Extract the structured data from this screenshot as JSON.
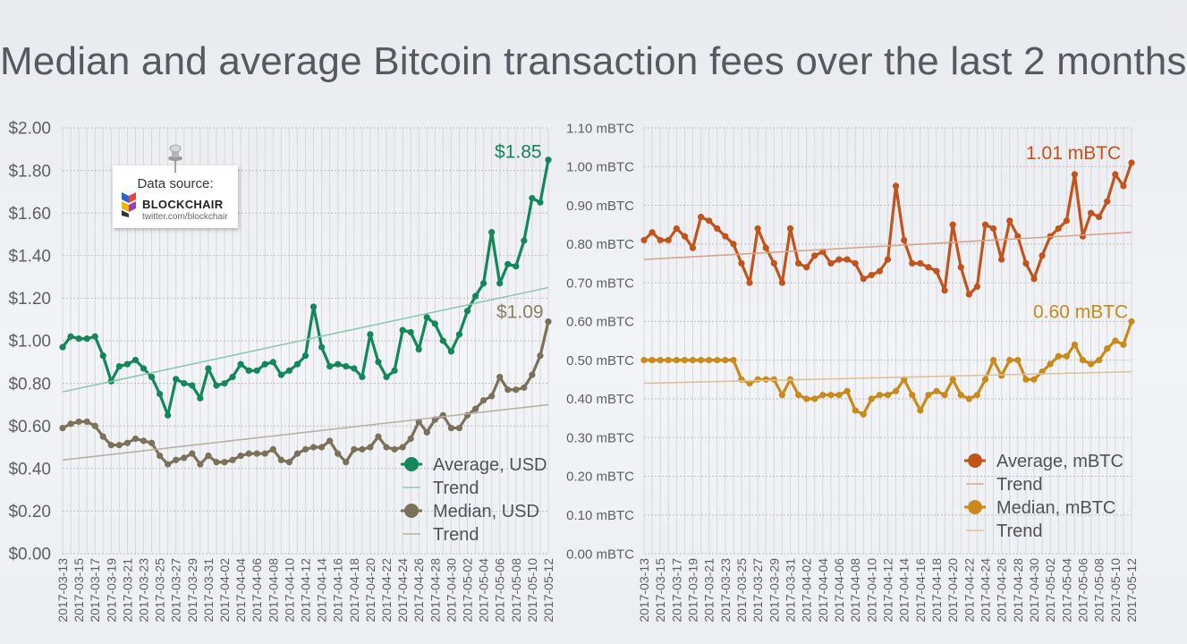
{
  "slide_title": "Median and average Bitcoin transaction fees over the last 2 months",
  "note": {
    "title": "Data source:",
    "brand": "BLOCKCHAIR",
    "handle": "twitter.com/blockchair"
  },
  "chart_data": [
    {
      "type": "line",
      "title": "",
      "xlabel": "",
      "ylabel": "",
      "ylim": [
        0,
        2
      ],
      "y_ticks": [
        "$0.00",
        "$0.20",
        "$0.40",
        "$0.60",
        "$0.80",
        "$1.00",
        "$1.20",
        "$1.40",
        "$1.60",
        "$1.80",
        "$2.00"
      ],
      "grid": true,
      "legend_position": "bottom-right",
      "x_tick_labels": [
        "2017-03-13",
        "2017-03-15",
        "2017-03-17",
        "2017-03-19",
        "2017-03-21",
        "2017-03-23",
        "2017-03-25",
        "2017-03-27",
        "2017-03-29",
        "2017-03-31",
        "2017-04-02",
        "2017-04-04",
        "2017-04-06",
        "2017-04-08",
        "2017-04-10",
        "2017-04-12",
        "2017-04-14",
        "2017-04-16",
        "2017-04-18",
        "2017-04-20",
        "2017-04-22",
        "2017-04-24",
        "2017-04-26",
        "2017-04-28",
        "2017-04-30",
        "2017-05-02",
        "2017-05-04",
        "2017-05-06",
        "2017-05-08",
        "2017-05-10",
        "2017-05-12"
      ],
      "series": [
        {
          "name": "Average, USD",
          "color": "#12875a",
          "kind": "data",
          "values": [
            0.97,
            1.02,
            1.01,
            1.01,
            1.02,
            0.93,
            0.81,
            0.88,
            0.89,
            0.91,
            0.87,
            0.83,
            0.75,
            0.65,
            0.82,
            0.8,
            0.79,
            0.73,
            0.87,
            0.79,
            0.8,
            0.83,
            0.89,
            0.86,
            0.86,
            0.89,
            0.9,
            0.84,
            0.86,
            0.89,
            0.93,
            1.16,
            0.97,
            0.88,
            0.89,
            0.88,
            0.87,
            0.83,
            1.03,
            0.9,
            0.83,
            0.86,
            1.05,
            1.04,
            0.96,
            1.11,
            1.08,
            1.0,
            0.95,
            1.03,
            1.14,
            1.21,
            1.27,
            1.51,
            1.27,
            1.36,
            1.35,
            1.47,
            1.67,
            1.65,
            1.85
          ]
        },
        {
          "name": "Trend",
          "color": "#8cc9ad",
          "kind": "trend",
          "values": [
            0.76,
            1.25
          ]
        },
        {
          "name": "Median, USD",
          "color": "#7b7158",
          "kind": "data",
          "values": [
            0.59,
            0.61,
            0.62,
            0.62,
            0.6,
            0.55,
            0.51,
            0.51,
            0.52,
            0.54,
            0.53,
            0.52,
            0.46,
            0.42,
            0.44,
            0.45,
            0.47,
            0.42,
            0.46,
            0.43,
            0.43,
            0.44,
            0.46,
            0.47,
            0.47,
            0.47,
            0.49,
            0.44,
            0.43,
            0.47,
            0.49,
            0.5,
            0.5,
            0.53,
            0.47,
            0.43,
            0.49,
            0.49,
            0.5,
            0.55,
            0.5,
            0.49,
            0.5,
            0.54,
            0.62,
            0.57,
            0.63,
            0.65,
            0.59,
            0.59,
            0.65,
            0.68,
            0.72,
            0.74,
            0.83,
            0.77,
            0.77,
            0.78,
            0.84,
            0.93,
            1.09
          ]
        },
        {
          "name": "Trend",
          "color": "#b9b2a2",
          "kind": "trend",
          "values": [
            0.44,
            0.7
          ]
        }
      ],
      "annotations": [
        {
          "text": "$1.85",
          "color": "#12875a"
        },
        {
          "text": "$1.09",
          "color": "#8a7f63"
        }
      ]
    },
    {
      "type": "line",
      "title": "",
      "xlabel": "",
      "ylabel": "",
      "ylim": [
        0,
        1.1
      ],
      "y_ticks": [
        "0.00 mBTC",
        "0.10 mBTC",
        "0.20 mBTC",
        "0.30 mBTC",
        "0.40 mBTC",
        "0.50 mBTC",
        "0.60 mBTC",
        "0.70 mBTC",
        "0.80 mBTC",
        "0.90 mBTC",
        "1.00 mBTC",
        "1.10 mBTC"
      ],
      "grid": true,
      "legend_position": "bottom-right",
      "x_tick_labels": [
        "2017-03-13",
        "2017-03-15",
        "2017-03-17",
        "2017-03-19",
        "2017-03-21",
        "2017-03-23",
        "2017-03-25",
        "2017-03-27",
        "2017-03-29",
        "2017-03-31",
        "2017-04-02",
        "2017-04-04",
        "2017-04-06",
        "2017-04-08",
        "2017-04-10",
        "2017-04-12",
        "2017-04-14",
        "2017-04-16",
        "2017-04-18",
        "2017-04-20",
        "2017-04-22",
        "2017-04-24",
        "2017-04-26",
        "2017-04-28",
        "2017-04-30",
        "2017-05-02",
        "2017-05-04",
        "2017-05-06",
        "2017-05-08",
        "2017-05-10",
        "2017-05-12"
      ],
      "series": [
        {
          "name": "Average, mBTC",
          "color": "#c1531b",
          "kind": "data",
          "values": [
            0.81,
            0.83,
            0.81,
            0.81,
            0.84,
            0.82,
            0.79,
            0.87,
            0.86,
            0.84,
            0.82,
            0.8,
            0.75,
            0.7,
            0.84,
            0.79,
            0.75,
            0.7,
            0.84,
            0.75,
            0.74,
            0.77,
            0.78,
            0.75,
            0.76,
            0.76,
            0.75,
            0.71,
            0.72,
            0.73,
            0.76,
            0.95,
            0.81,
            0.75,
            0.75,
            0.74,
            0.73,
            0.68,
            0.85,
            0.74,
            0.67,
            0.69,
            0.85,
            0.84,
            0.76,
            0.86,
            0.82,
            0.75,
            0.71,
            0.77,
            0.82,
            0.84,
            0.86,
            0.98,
            0.82,
            0.88,
            0.87,
            0.91,
            0.98,
            0.95,
            1.01
          ]
        },
        {
          "name": "Trend",
          "color": "#d9a38a",
          "kind": "trend",
          "values": [
            0.76,
            0.83
          ]
        },
        {
          "name": "Median, mBTC",
          "color": "#c98a1a",
          "kind": "data",
          "values": [
            0.5,
            0.5,
            0.5,
            0.5,
            0.5,
            0.5,
            0.5,
            0.5,
            0.5,
            0.5,
            0.5,
            0.5,
            0.45,
            0.44,
            0.45,
            0.45,
            0.45,
            0.41,
            0.45,
            0.41,
            0.4,
            0.4,
            0.41,
            0.41,
            0.41,
            0.42,
            0.37,
            0.36,
            0.4,
            0.41,
            0.41,
            0.42,
            0.45,
            0.41,
            0.37,
            0.41,
            0.42,
            0.41,
            0.45,
            0.41,
            0.4,
            0.41,
            0.45,
            0.5,
            0.46,
            0.5,
            0.5,
            0.45,
            0.45,
            0.47,
            0.49,
            0.51,
            0.51,
            0.54,
            0.5,
            0.49,
            0.5,
            0.53,
            0.55,
            0.54,
            0.6
          ]
        },
        {
          "name": "Trend",
          "color": "#dcc29a",
          "kind": "trend",
          "values": [
            0.44,
            0.47
          ]
        }
      ],
      "annotations": [
        {
          "text": "1.01 mBTC",
          "color": "#c1531b"
        },
        {
          "text": "0.60 mBTC",
          "color": "#c98a1a"
        }
      ]
    }
  ]
}
